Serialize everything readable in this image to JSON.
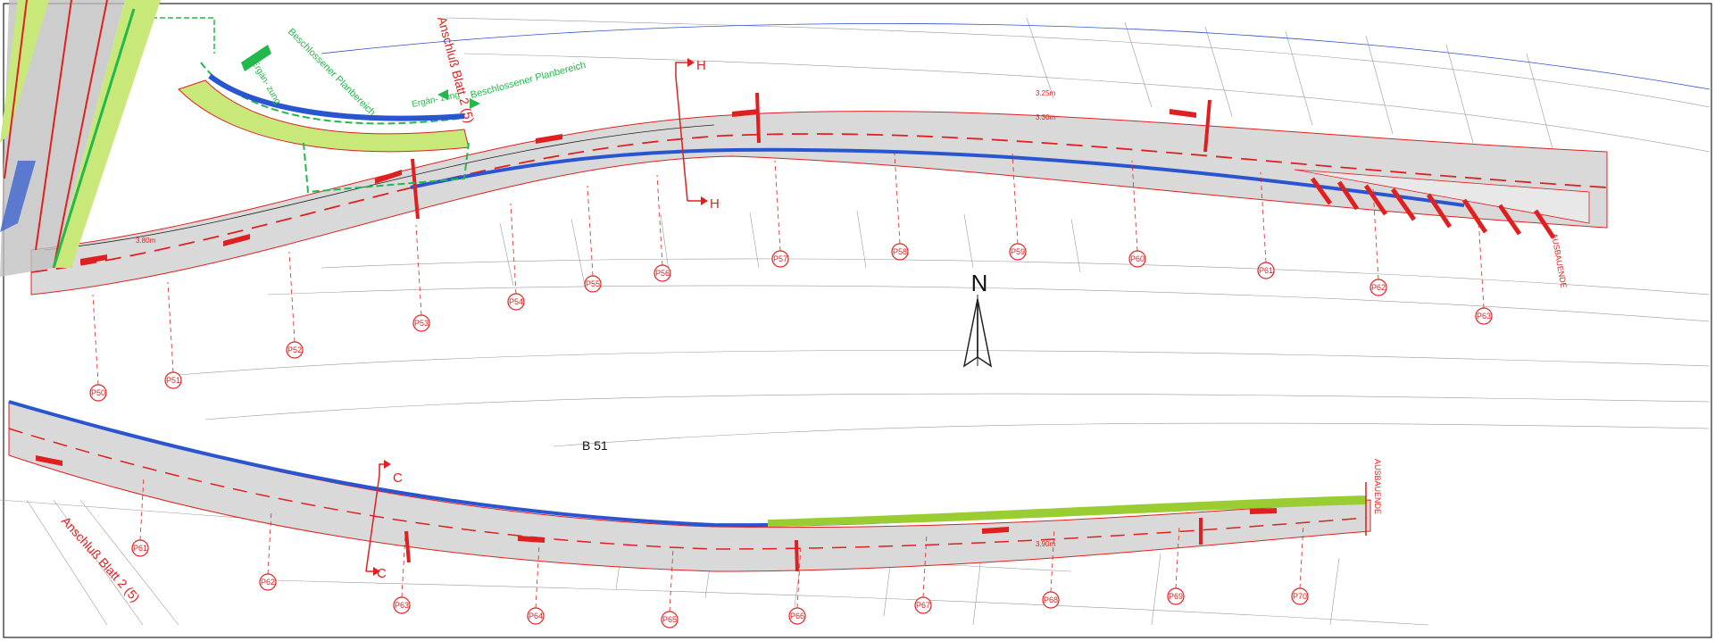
{
  "labels": {
    "north": "N",
    "road": "B 51",
    "anschluss_top": "Anschluß Blatt 2 (5)",
    "anschluss_bottom": "Anschluß Blatt 2 (5)",
    "beschlossener_1": "Beschlossener Planbereich",
    "beschlossener_2": "Beschlossener Planbereich",
    "ergaenzung_1": "Ergän- zung",
    "ergaenzung_2": "Ergän- zung",
    "section_h": "H",
    "section_c": "C",
    "ausbauende_top": "AUSBAUENDE",
    "ausbauende_bottom": "AUSBAUENDE",
    "width_380": "3.80m",
    "width_330": "3.30m",
    "width_390": "3.90m",
    "width_325": "3.25m"
  },
  "profiles_top": [
    "P53",
    "P54",
    "P55",
    "P56",
    "P57",
    "P58",
    "P59",
    "P60",
    "P61",
    "P62",
    "P63"
  ],
  "profiles_left": [
    "P50",
    "P51",
    "P52"
  ],
  "profiles_bottom": [
    "P61",
    "P62",
    "P63",
    "P64",
    "P65",
    "P66",
    "P67",
    "P68",
    "P69",
    "P70"
  ],
  "colors": {
    "red": "#e02020",
    "green": "#22b84a",
    "blue": "#2a55d0",
    "lightgreen": "#c8e87a",
    "asphalt": "#d9d9d9"
  }
}
